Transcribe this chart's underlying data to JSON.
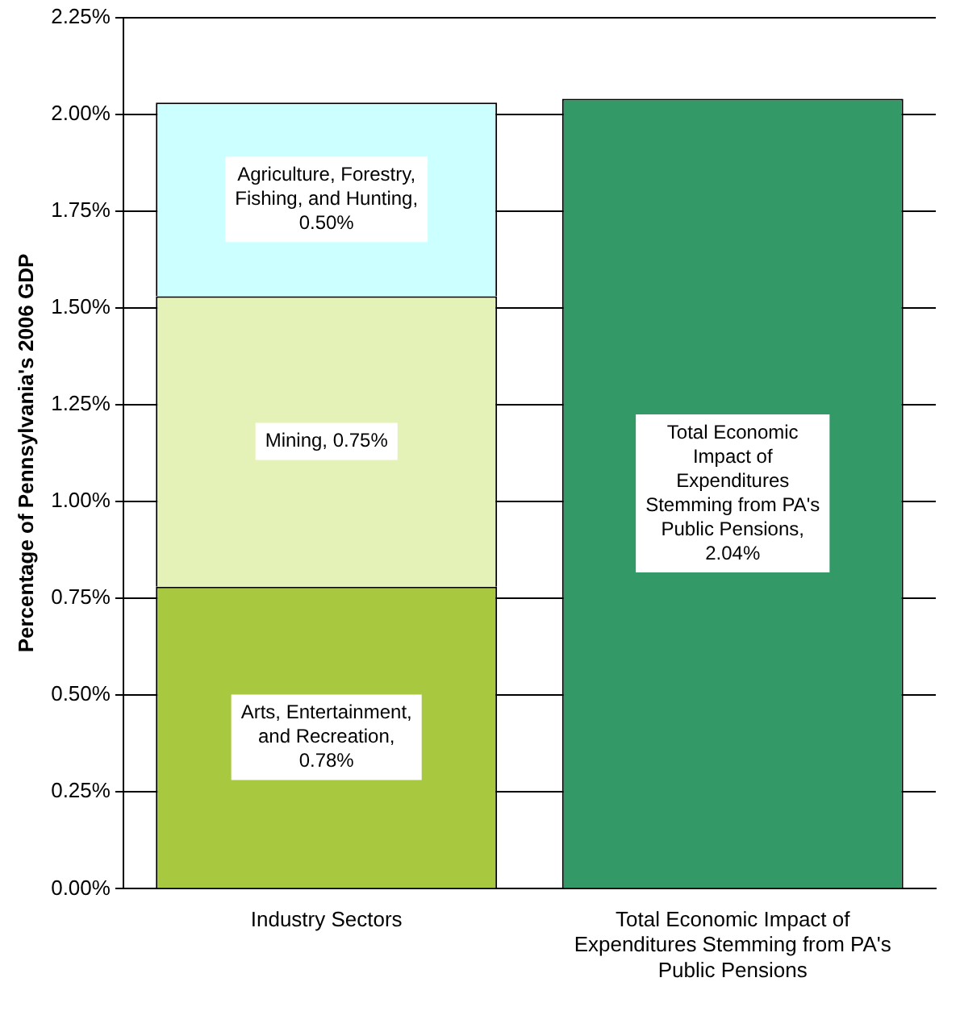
{
  "chart_data": {
    "type": "bar",
    "stacked": true,
    "ylabel": "Percentage of Pennsylvania's 2006 GDP",
    "categories": [
      "Industry Sectors",
      "Total Economic Impact of Expenditures Stemming from PA's Public Pensions"
    ],
    "series": [
      {
        "color": "#a8c840",
        "values": [
          0.78,
          null
        ],
        "value_labels": [
          "Arts, Entertainment, and Recreation, 0.78%",
          null
        ]
      },
      {
        "color": "#e4f2b8",
        "values": [
          0.75,
          null
        ],
        "value_labels": [
          "Mining, 0.75%",
          null
        ]
      },
      {
        "color": "#ccffff",
        "values": [
          0.5,
          null
        ],
        "value_labels": [
          "Agriculture, Forestry, Fishing, and Hunting, 0.50%",
          null
        ]
      },
      {
        "color": "#339966",
        "values": [
          null,
          2.04
        ],
        "value_labels": [
          null,
          "Total Economic Impact of Expenditures Stemming from PA's Public Pensions, 2.04%"
        ]
      }
    ],
    "ylim": [
      0,
      2.25
    ],
    "yticks": [
      {
        "value": 0,
        "label": "0.00%"
      },
      {
        "value": 0.25,
        "label": "0.25%"
      },
      {
        "value": 0.5,
        "label": "0.50%"
      },
      {
        "value": 0.75,
        "label": "0.75%"
      },
      {
        "value": 1,
        "label": "1.00%"
      },
      {
        "value": 1.25,
        "label": "1.25%"
      },
      {
        "value": 1.5,
        "label": "1.50%"
      },
      {
        "value": 1.75,
        "label": "1.75%"
      },
      {
        "value": 2,
        "label": "2.00%"
      },
      {
        "value": 2.25,
        "label": "2.25%"
      }
    ],
    "grid": "y",
    "legend": false
  }
}
